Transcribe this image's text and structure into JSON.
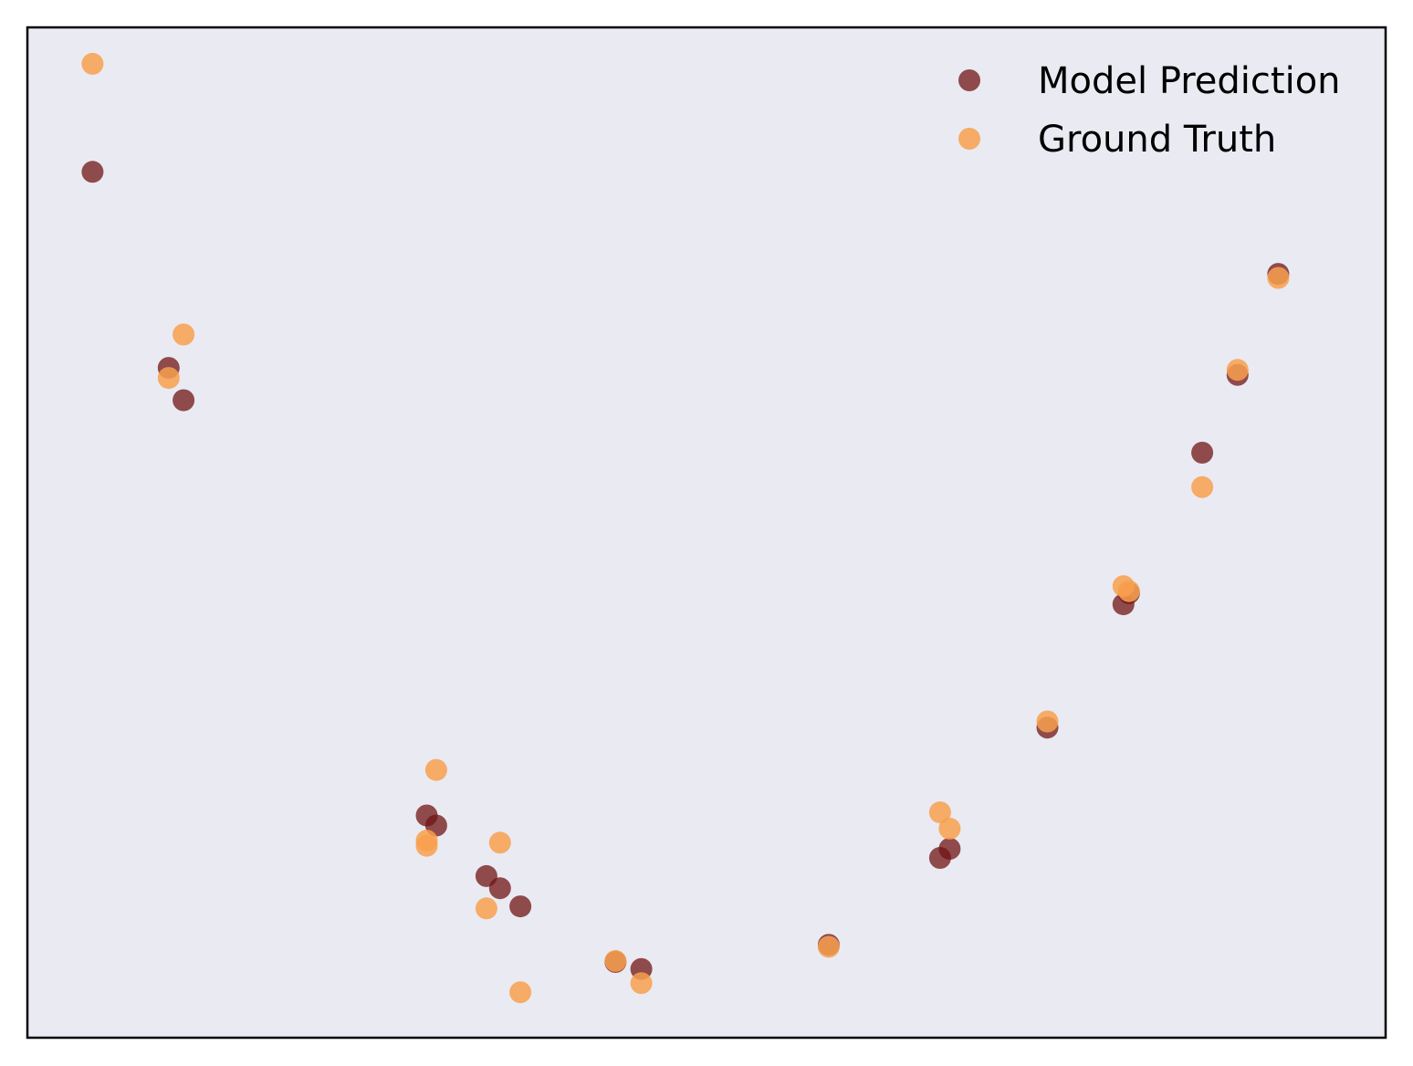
{
  "chart_data": {
    "type": "scatter",
    "title": "",
    "xlabel": "",
    "ylabel": "",
    "xlim": [
      0,
      100
    ],
    "ylim": [
      0,
      100
    ],
    "grid": false,
    "show_ticks": false,
    "legend": "top-right",
    "plot_background": "#eaeaf2",
    "series": [
      {
        "name": "Model Prediction",
        "color": "#701414",
        "opacity": 0.75,
        "points": [
          {
            "x": 4.8,
            "y": 85.7
          },
          {
            "x": 10.4,
            "y": 66.3
          },
          {
            "x": 11.5,
            "y": 63.1
          },
          {
            "x": 29.4,
            "y": 22.0
          },
          {
            "x": 30.1,
            "y": 21.0
          },
          {
            "x": 33.8,
            "y": 16.0
          },
          {
            "x": 34.8,
            "y": 14.8
          },
          {
            "x": 36.3,
            "y": 13.0
          },
          {
            "x": 43.3,
            "y": 7.5
          },
          {
            "x": 45.2,
            "y": 6.8
          },
          {
            "x": 59.0,
            "y": 9.2
          },
          {
            "x": 67.2,
            "y": 17.8
          },
          {
            "x": 67.9,
            "y": 18.7
          },
          {
            "x": 75.1,
            "y": 30.7
          },
          {
            "x": 80.7,
            "y": 42.9
          },
          {
            "x": 81.1,
            "y": 44.0
          },
          {
            "x": 86.5,
            "y": 57.9
          },
          {
            "x": 89.1,
            "y": 65.6
          },
          {
            "x": 92.1,
            "y": 75.6
          }
        ]
      },
      {
        "name": "Ground Truth",
        "color": "#f8a04e",
        "opacity": 0.85,
        "points": [
          {
            "x": 4.8,
            "y": 96.4
          },
          {
            "x": 11.5,
            "y": 69.6
          },
          {
            "x": 10.4,
            "y": 65.3
          },
          {
            "x": 30.1,
            "y": 26.5
          },
          {
            "x": 29.4,
            "y": 19.5
          },
          {
            "x": 29.4,
            "y": 19.0
          },
          {
            "x": 34.8,
            "y": 19.3
          },
          {
            "x": 33.8,
            "y": 12.8
          },
          {
            "x": 36.3,
            "y": 4.5
          },
          {
            "x": 43.3,
            "y": 7.6
          },
          {
            "x": 45.2,
            "y": 5.4
          },
          {
            "x": 59.0,
            "y": 9.0
          },
          {
            "x": 67.2,
            "y": 22.3
          },
          {
            "x": 67.9,
            "y": 20.7
          },
          {
            "x": 75.1,
            "y": 31.3
          },
          {
            "x": 80.7,
            "y": 44.7
          },
          {
            "x": 81.1,
            "y": 44.2
          },
          {
            "x": 86.5,
            "y": 54.5
          },
          {
            "x": 89.1,
            "y": 66.1
          },
          {
            "x": 92.1,
            "y": 75.2
          }
        ]
      }
    ]
  }
}
